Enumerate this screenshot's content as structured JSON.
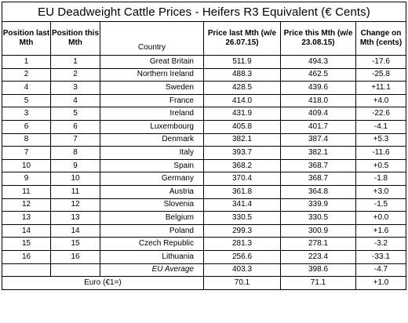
{
  "title": "EU Deadweight Cattle Prices - Heifers R3 Equivalent (€ Cents)",
  "headers": {
    "pos_last": "Position last Mth",
    "pos_this": "Position this Mth",
    "country": "Country",
    "price_last": "Price last Mth (w/e 26.07.15)",
    "price_this": "Price this Mth (w/e 23.08.15)",
    "change": "Change on Mth (cents)"
  },
  "rows": [
    {
      "pos_last": "1",
      "pos_this": "1",
      "country": "Great Britain",
      "price_last": "511.9",
      "price_this": "494.3",
      "change": "-17.6"
    },
    {
      "pos_last": "2",
      "pos_this": "2",
      "country": "Northern Ireland",
      "price_last": "488.3",
      "price_this": "462.5",
      "change": "-25.8"
    },
    {
      "pos_last": "4",
      "pos_this": "3",
      "country": "Sweden",
      "price_last": "428.5",
      "price_this": "439.6",
      "change": "+11.1"
    },
    {
      "pos_last": "5",
      "pos_this": "4",
      "country": "France",
      "price_last": "414.0",
      "price_this": "418.0",
      "change": "+4.0"
    },
    {
      "pos_last": "3",
      "pos_this": "5",
      "country": "Ireland",
      "price_last": "431.9",
      "price_this": "409.4",
      "change": "-22.6"
    },
    {
      "pos_last": "6",
      "pos_this": "6",
      "country": "Luxembourg",
      "price_last": "405.8",
      "price_this": "401.7",
      "change": "-4.1"
    },
    {
      "pos_last": "8",
      "pos_this": "7",
      "country": "Denmark",
      "price_last": "382.1",
      "price_this": "387.4",
      "change": "+5.3"
    },
    {
      "pos_last": "7",
      "pos_this": "8",
      "country": "Italy",
      "price_last": "393.7",
      "price_this": "382.1",
      "change": "-11.6"
    },
    {
      "pos_last": "10",
      "pos_this": "9",
      "country": "Spain",
      "price_last": "368.2",
      "price_this": "368.7",
      "change": "+0.5"
    },
    {
      "pos_last": "9",
      "pos_this": "10",
      "country": "Germany",
      "price_last": "370.4",
      "price_this": "368.7",
      "change": "-1.8"
    },
    {
      "pos_last": "11",
      "pos_this": "11",
      "country": "Austria",
      "price_last": "361.8",
      "price_this": "364.8",
      "change": "+3.0"
    },
    {
      "pos_last": "12",
      "pos_this": "12",
      "country": "Slovenia",
      "price_last": "341.4",
      "price_this": "339.9",
      "change": "-1.5"
    },
    {
      "pos_last": "13",
      "pos_this": "13",
      "country": "Belgium",
      "price_last": "330.5",
      "price_this": "330.5",
      "change": "+0.0"
    },
    {
      "pos_last": "14",
      "pos_this": "14",
      "country": "Poland",
      "price_last": "299.3",
      "price_this": "300.9",
      "change": "+1.6"
    },
    {
      "pos_last": "15",
      "pos_this": "15",
      "country": "Czech Republic",
      "price_last": "281.3",
      "price_this": "278.1",
      "change": "-3.2"
    },
    {
      "pos_last": "16",
      "pos_this": "16",
      "country": "Lithuania",
      "price_last": "256.6",
      "price_this": "223.4",
      "change": "-33.1"
    }
  ],
  "average": {
    "label": "EU Average",
    "price_last": "403.3",
    "price_this": "398.6",
    "change": "-4.7"
  },
  "euro": {
    "label": "Euro (€1=)",
    "price_last": "70.1",
    "price_this": "71.1",
    "change": "+1.0"
  }
}
